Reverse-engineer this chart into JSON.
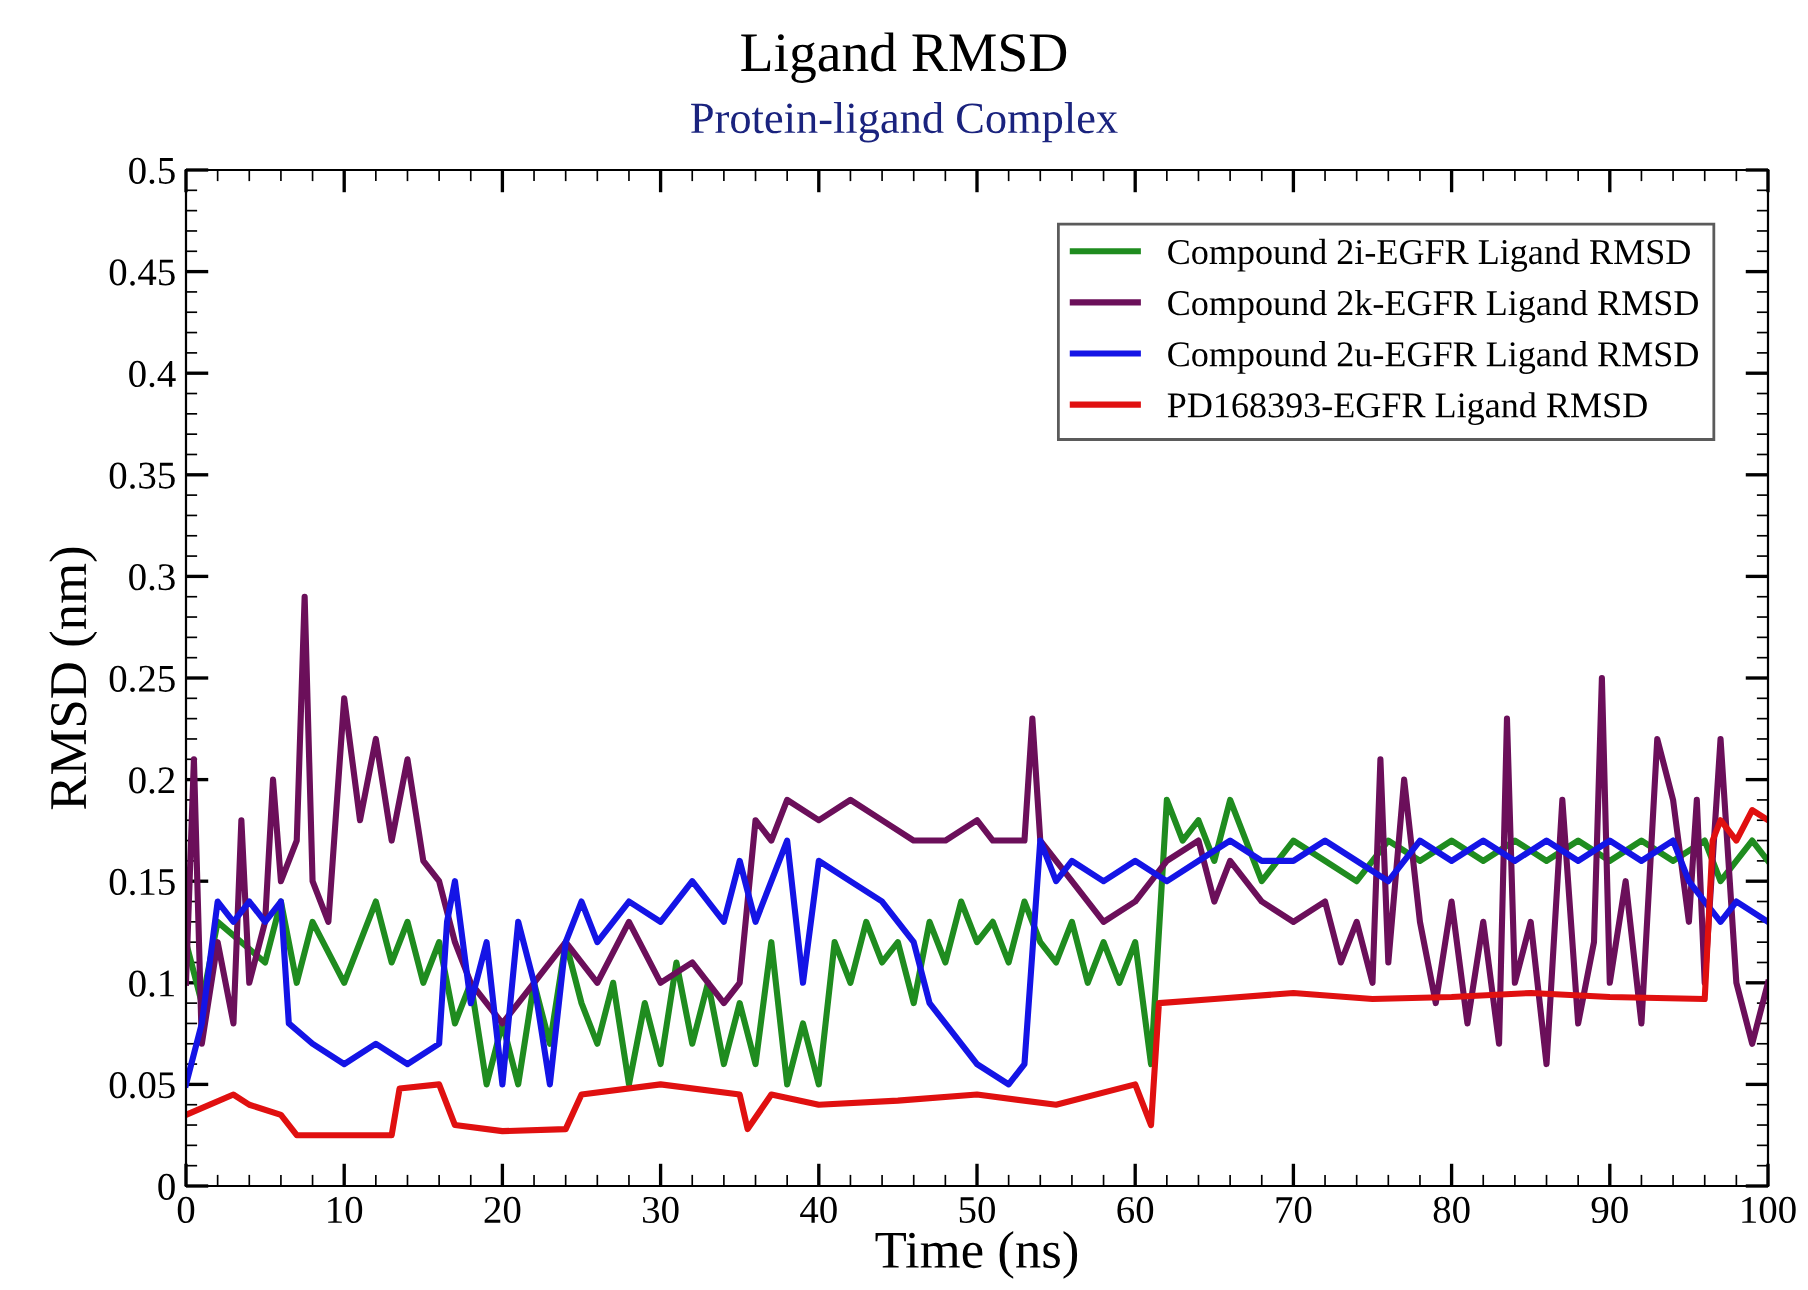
{
  "chart_data": {
    "type": "line",
    "title": "Ligand RMSD",
    "subtitle": "Protein-ligand Complex",
    "xlabel": "Time (ns)",
    "ylabel": "RMSD (nm)",
    "xlim": [
      0,
      100
    ],
    "xticks": [
      0,
      10,
      20,
      30,
      40,
      50,
      60,
      70,
      80,
      90,
      100
    ],
    "ylim": [
      0,
      0.5
    ],
    "yticks": [
      0,
      0.05,
      0.1,
      0.15,
      0.2,
      0.25,
      0.3,
      0.35,
      0.4,
      0.45,
      0.5
    ],
    "grid": false,
    "legend": "top right",
    "marker": "none",
    "line_style": "solid",
    "series": [
      {
        "name": "Compound 2i-EGFR Ligand RMSD",
        "color": "#1f8c1f",
        "x": [
          0,
          1,
          2,
          5,
          6,
          7,
          8,
          10,
          12,
          13,
          14,
          15,
          16,
          17,
          18,
          19,
          20,
          21,
          22,
          23,
          24,
          25,
          26,
          27,
          28,
          29,
          30,
          31,
          32,
          33,
          34,
          35,
          36,
          37,
          38,
          39,
          40,
          41,
          42,
          43,
          44,
          45,
          46,
          47,
          48,
          49,
          50,
          51,
          52,
          53,
          54,
          55,
          56,
          57,
          58,
          59,
          60,
          61,
          62,
          63,
          64,
          65,
          66,
          67,
          68,
          70,
          72,
          74,
          76,
          78,
          80,
          82,
          84,
          86,
          88,
          90,
          92,
          94,
          96,
          97,
          98,
          99,
          100
        ],
        "values": [
          0.12,
          0.09,
          0.13,
          0.11,
          0.14,
          0.1,
          0.13,
          0.1,
          0.14,
          0.11,
          0.13,
          0.1,
          0.12,
          0.08,
          0.1,
          0.05,
          0.08,
          0.05,
          0.1,
          0.07,
          0.12,
          0.09,
          0.07,
          0.1,
          0.05,
          0.09,
          0.06,
          0.11,
          0.07,
          0.1,
          0.06,
          0.09,
          0.06,
          0.12,
          0.05,
          0.08,
          0.05,
          0.12,
          0.1,
          0.13,
          0.11,
          0.12,
          0.09,
          0.13,
          0.11,
          0.14,
          0.12,
          0.13,
          0.11,
          0.14,
          0.12,
          0.11,
          0.13,
          0.1,
          0.12,
          0.1,
          0.12,
          0.06,
          0.19,
          0.17,
          0.18,
          0.16,
          0.19,
          0.17,
          0.15,
          0.17,
          0.16,
          0.15,
          0.17,
          0.16,
          0.17,
          0.16,
          0.17,
          0.16,
          0.17,
          0.16,
          0.17,
          0.16,
          0.17,
          0.15,
          0.16,
          0.17,
          0.16
        ]
      },
      {
        "name": "Compound 2k-EGFR Ligand RMSD",
        "color": "#6b0f5a",
        "x": [
          0,
          0.5,
          1,
          2,
          3,
          3.5,
          4,
          5,
          5.5,
          6,
          7,
          7.5,
          8,
          9,
          10,
          11,
          12,
          13,
          14,
          15,
          16,
          17,
          18,
          20,
          22,
          24,
          26,
          28,
          30,
          32,
          34,
          35,
          36,
          37,
          38,
          40,
          42,
          44,
          46,
          48,
          50,
          51,
          52,
          53,
          53.5,
          54,
          55,
          56,
          58,
          60,
          62,
          64,
          65,
          66,
          68,
          70,
          72,
          73,
          74,
          75,
          75.5,
          76,
          77,
          78,
          79,
          80,
          81,
          82,
          83,
          83.5,
          84,
          85,
          86,
          87,
          88,
          89,
          89.5,
          90,
          91,
          92,
          93,
          94,
          95,
          95.5,
          96,
          97,
          98,
          99,
          100
        ],
        "values": [
          0.1,
          0.21,
          0.07,
          0.12,
          0.08,
          0.18,
          0.1,
          0.13,
          0.2,
          0.15,
          0.17,
          0.29,
          0.15,
          0.13,
          0.24,
          0.18,
          0.22,
          0.17,
          0.21,
          0.16,
          0.15,
          0.12,
          0.1,
          0.08,
          0.1,
          0.12,
          0.1,
          0.13,
          0.1,
          0.11,
          0.09,
          0.1,
          0.18,
          0.17,
          0.19,
          0.18,
          0.19,
          0.18,
          0.17,
          0.17,
          0.18,
          0.17,
          0.17,
          0.17,
          0.23,
          0.17,
          0.16,
          0.15,
          0.13,
          0.14,
          0.16,
          0.17,
          0.14,
          0.16,
          0.14,
          0.13,
          0.14,
          0.11,
          0.13,
          0.1,
          0.21,
          0.11,
          0.2,
          0.13,
          0.09,
          0.14,
          0.08,
          0.13,
          0.07,
          0.23,
          0.1,
          0.13,
          0.06,
          0.19,
          0.08,
          0.12,
          0.25,
          0.1,
          0.15,
          0.08,
          0.22,
          0.19,
          0.13,
          0.19,
          0.1,
          0.22,
          0.1,
          0.07,
          0.1
        ]
      },
      {
        "name": "Compound 2u-EGFR Ligand RMSD",
        "color": "#1414e6",
        "x": [
          0,
          1,
          2,
          3,
          4,
          5,
          6,
          6.5,
          8,
          10,
          12,
          14,
          16,
          16.5,
          17,
          18,
          19,
          20,
          21,
          22,
          23,
          24,
          25,
          26,
          28,
          30,
          32,
          34,
          35,
          36,
          38,
          39,
          40,
          42,
          44,
          46,
          47,
          48,
          50,
          52,
          53,
          54,
          55,
          56,
          58,
          60,
          62,
          64,
          66,
          68,
          70,
          72,
          74,
          76,
          78,
          80,
          82,
          84,
          86,
          88,
          90,
          92,
          94,
          95,
          96,
          97,
          98,
          100
        ],
        "values": [
          0.05,
          0.08,
          0.14,
          0.13,
          0.14,
          0.13,
          0.14,
          0.08,
          0.07,
          0.06,
          0.07,
          0.06,
          0.07,
          0.13,
          0.15,
          0.09,
          0.12,
          0.05,
          0.13,
          0.1,
          0.05,
          0.12,
          0.14,
          0.12,
          0.14,
          0.13,
          0.15,
          0.13,
          0.16,
          0.13,
          0.17,
          0.1,
          0.16,
          0.15,
          0.14,
          0.12,
          0.09,
          0.08,
          0.06,
          0.05,
          0.06,
          0.17,
          0.15,
          0.16,
          0.15,
          0.16,
          0.15,
          0.16,
          0.17,
          0.16,
          0.16,
          0.17,
          0.16,
          0.15,
          0.17,
          0.16,
          0.17,
          0.16,
          0.17,
          0.16,
          0.17,
          0.16,
          0.17,
          0.15,
          0.14,
          0.13,
          0.14,
          0.13
        ]
      },
      {
        "name": "PD168393-EGFR Ligand RMSD",
        "color": "#e01010",
        "x": [
          0,
          3,
          4,
          6,
          7,
          10,
          13,
          13.5,
          16,
          17,
          20,
          24,
          25,
          30,
          35,
          35.5,
          37,
          40,
          45,
          50,
          55,
          60,
          61,
          61.5,
          65,
          70,
          75,
          80,
          85,
          90,
          96,
          96.5,
          97,
          98,
          99,
          100
        ],
        "values": [
          0.035,
          0.045,
          0.04,
          0.035,
          0.025,
          0.025,
          0.025,
          0.048,
          0.05,
          0.03,
          0.027,
          0.028,
          0.045,
          0.05,
          0.045,
          0.028,
          0.045,
          0.04,
          0.042,
          0.045,
          0.04,
          0.05,
          0.03,
          0.09,
          0.092,
          0.095,
          0.092,
          0.093,
          0.095,
          0.093,
          0.092,
          0.17,
          0.18,
          0.17,
          0.185,
          0.18
        ]
      }
    ]
  }
}
